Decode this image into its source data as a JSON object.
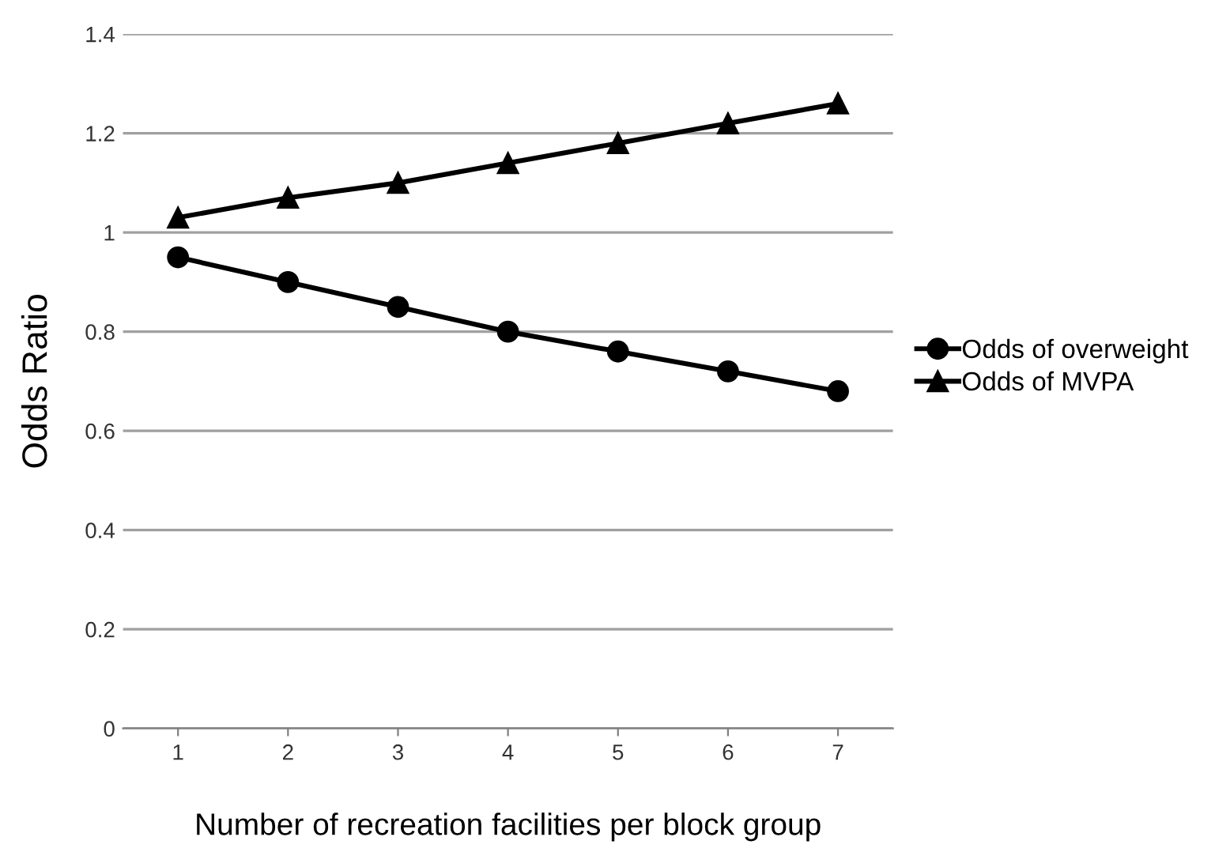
{
  "chart_data": {
    "type": "line",
    "xlabel": "Number of recreation facilities per block group",
    "ylabel": "Odds Ratio",
    "categories": [
      "1",
      "2",
      "3",
      "4",
      "5",
      "6",
      "7"
    ],
    "series": [
      {
        "name": "Odds of overweight",
        "color": "#000000",
        "marker": "circle",
        "values": [
          0.95,
          0.9,
          0.85,
          0.8,
          0.76,
          0.72,
          0.68
        ]
      },
      {
        "name": "Odds of MVPA",
        "color": "#000000",
        "marker": "triangle",
        "values": [
          1.03,
          1.07,
          1.1,
          1.14,
          1.18,
          1.22,
          1.26
        ]
      }
    ],
    "ylim": [
      0,
      1.4
    ],
    "yticks": [
      0,
      0.2,
      0.4,
      0.6,
      0.8,
      1,
      1.2,
      1.4
    ],
    "grid": "y",
    "legend": "right",
    "line_style": "solid"
  }
}
